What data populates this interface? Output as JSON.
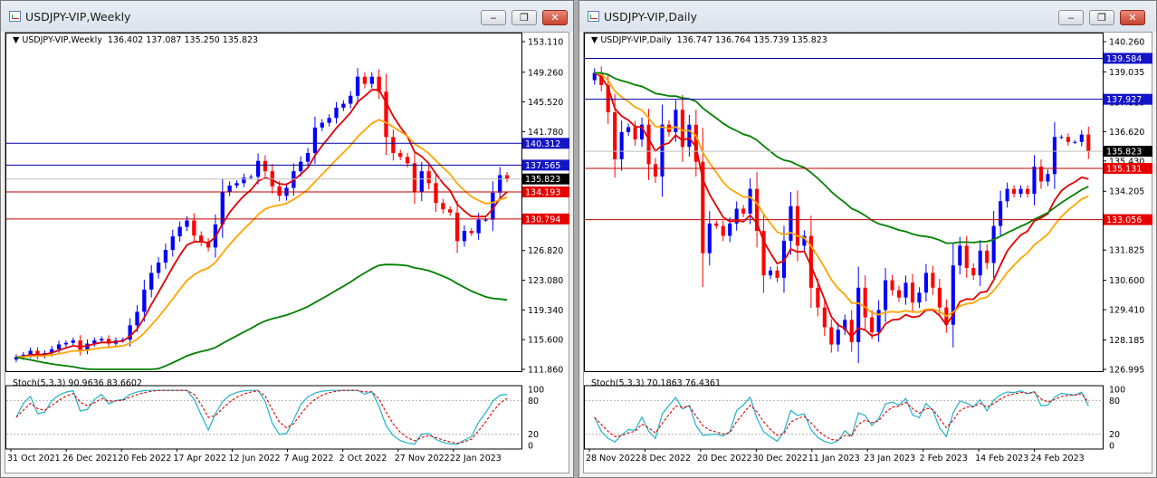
{
  "left": {
    "title": "USDJPY-VIP,Weekly",
    "info_symbol": "USDJPY-VIP,Weekly",
    "info_ohlc": "136.402 137.087 135.250 135.823",
    "indicator_label": "Stoch(5,3,3) 90.9636 83.6602",
    "price_ticks": [
      "153.110",
      "149.260",
      "145.520",
      "141.780",
      "137.565",
      "134.193",
      "130.794",
      "126.820",
      "123.080",
      "119.340",
      "115.600",
      "111.860"
    ],
    "price_ticks_values": [
      153.11,
      149.26,
      145.52,
      141.78,
      137.565,
      134.193,
      130.794,
      126.82,
      123.08,
      119.34,
      115.6,
      111.86
    ],
    "level_labels": [
      {
        "text": "140.312",
        "value": 140.312,
        "bg": "#1515c8",
        "fg": "#ffffff"
      },
      {
        "text": "137.565",
        "value": 137.565,
        "bg": "#1515c8",
        "fg": "#ffffff"
      },
      {
        "text": "135.823",
        "value": 135.823,
        "bg": "#000000",
        "fg": "#ffffff"
      },
      {
        "text": "134.193",
        "value": 134.193,
        "bg": "#e60000",
        "fg": "#ffffff"
      },
      {
        "text": "130.794",
        "value": 130.794,
        "bg": "#e60000",
        "fg": "#ffffff"
      }
    ],
    "stoch_ticks": [
      "100",
      "80",
      "20",
      "0"
    ],
    "date_labels": [
      "31 Oct 2021",
      "26 Dec 2021",
      "20 Feb 2022",
      "17 Apr 2022",
      "12 Jun 2022",
      "7 Aug 2022",
      "2 Oct 2022",
      "27 Nov 2022",
      "22 Jan 2023"
    ]
  },
  "right": {
    "title": "USDJPY-VIP,Daily",
    "info_symbol": "USDJPY-VIP,Daily",
    "info_ohlc": "136.747 136.764 135.739 135.823",
    "indicator_label": "Stoch(5,3,3) 70.1863 76.4361",
    "price_ticks": [
      "140.260",
      "139.035",
      "137.810",
      "136.620",
      "135.430",
      "134.205",
      "131.825",
      "130.600",
      "129.410",
      "128.185",
      "126.995"
    ],
    "price_ticks_values": [
      140.26,
      139.035,
      137.81,
      136.62,
      135.43,
      134.205,
      131.825,
      130.6,
      129.41,
      128.185,
      126.995
    ],
    "level_labels": [
      {
        "text": "139.584",
        "value": 139.584,
        "bg": "#1515c8",
        "fg": "#ffffff"
      },
      {
        "text": "137.927",
        "value": 137.927,
        "bg": "#1515c8",
        "fg": "#ffffff"
      },
      {
        "text": "135.823",
        "value": 135.823,
        "bg": "#000000",
        "fg": "#ffffff"
      },
      {
        "text": "135.131",
        "value": 135.131,
        "bg": "#e60000",
        "fg": "#ffffff"
      },
      {
        "text": "133.056",
        "value": 133.056,
        "bg": "#e60000",
        "fg": "#ffffff"
      }
    ],
    "stoch_ticks": [
      "100",
      "80",
      "20",
      "0"
    ],
    "date_labels": [
      "28 Nov 2022",
      "8 Dec 2022",
      "20 Dec 2022",
      "30 Dec 2022",
      "11 Jan 2023",
      "23 Jan 2023",
      "2 Feb 2023",
      "14 Feb 2023",
      "24 Feb 2023"
    ]
  },
  "buttons": {
    "minimize": "‒",
    "restore": "❐",
    "close": "✕"
  },
  "colors": {
    "bull": "#0000ff",
    "bear": "#ff0000",
    "ma_fast": "#e00000",
    "ma_mid": "#ffa500",
    "ma_slow": "#008000",
    "stoch_main": "#20b2c8",
    "stoch_signal": "#e00000",
    "level_blue": "#0000a0",
    "level_red": "#c00000"
  },
  "chart_data": [
    {
      "type": "candlestick",
      "title": "USDJPY-VIP,Weekly",
      "ylim": [
        111.86,
        153.11
      ],
      "x_labels": [
        "31 Oct 2021",
        "26 Dec 2021",
        "20 Feb 2022",
        "17 Apr 2022",
        "12 Jun 2022",
        "7 Aug 2022",
        "2 Oct 2022",
        "27 Nov 2022",
        "22 Jan 2023"
      ],
      "close": [
        113.4,
        113.7,
        114.2,
        113.6,
        113.9,
        114.4,
        115.0,
        115.2,
        115.5,
        114.3,
        115.1,
        115.5,
        115.7,
        115.1,
        115.5,
        115.6,
        117.4,
        119.1,
        121.9,
        124.0,
        125.3,
        126.9,
        128.6,
        129.8,
        130.6,
        128.7,
        127.9,
        127.2,
        130.1,
        134.2,
        135.0,
        135.3,
        136.0,
        136.1,
        138.1,
        136.8,
        134.9,
        133.7,
        134.7,
        136.8,
        138.0,
        139.1,
        142.3,
        142.9,
        143.5,
        144.8,
        145.3,
        146.3,
        148.7,
        147.8,
        148.7,
        146.8,
        141.1,
        139.1,
        138.6,
        137.8,
        134.2,
        136.8,
        135.3,
        132.8,
        132.0,
        131.6,
        128.0,
        129.3,
        129.0,
        130.7,
        130.7,
        134.1,
        136.3,
        135.823
      ],
      "ma_fast_end": 134.2,
      "ma_mid_end": 133.5,
      "ma_slow_end": 120.6,
      "stochastic": {
        "main": 90.9636,
        "signal": 83.6602
      }
    },
    {
      "type": "candlestick",
      "title": "USDJPY-VIP,Daily",
      "ylim": [
        126.995,
        140.26
      ],
      "x_labels": [
        "28 Nov 2022",
        "8 Dec 2022",
        "20 Dec 2022",
        "30 Dec 2022",
        "11 Jan 2023",
        "23 Jan 2023",
        "2 Feb 2023",
        "14 Feb 2023",
        "24 Feb 2023"
      ],
      "close": [
        139.0,
        138.5,
        137.4,
        135.5,
        136.6,
        136.8,
        136.3,
        136.9,
        135.3,
        134.8,
        136.9,
        136.6,
        137.5,
        136.0,
        136.9,
        135.4,
        131.7,
        132.9,
        132.8,
        132.4,
        132.9,
        133.5,
        133.3,
        134.3,
        132.6,
        130.8,
        131.0,
        130.7,
        132.2,
        133.6,
        132.0,
        132.4,
        130.3,
        129.5,
        128.7,
        128.0,
        128.6,
        129.0,
        128.1,
        130.3,
        129.1,
        128.5,
        129.4,
        130.6,
        130.2,
        129.9,
        130.5,
        129.7,
        130.1,
        130.9,
        130.3,
        129.5,
        128.8,
        131.2,
        132.0,
        131.1,
        130.8,
        131.8,
        131.3,
        132.8,
        133.8,
        134.3,
        134.1,
        134.3,
        134.1,
        135.2,
        134.6,
        134.9,
        136.4,
        136.4,
        136.2,
        136.2,
        136.5,
        135.823
      ],
      "ma_fast_end": 134.7,
      "ma_mid_end": 134.0,
      "ma_slow_end": 134.4,
      "stochastic": {
        "main": 70.1863,
        "signal": 76.4361
      }
    }
  ]
}
